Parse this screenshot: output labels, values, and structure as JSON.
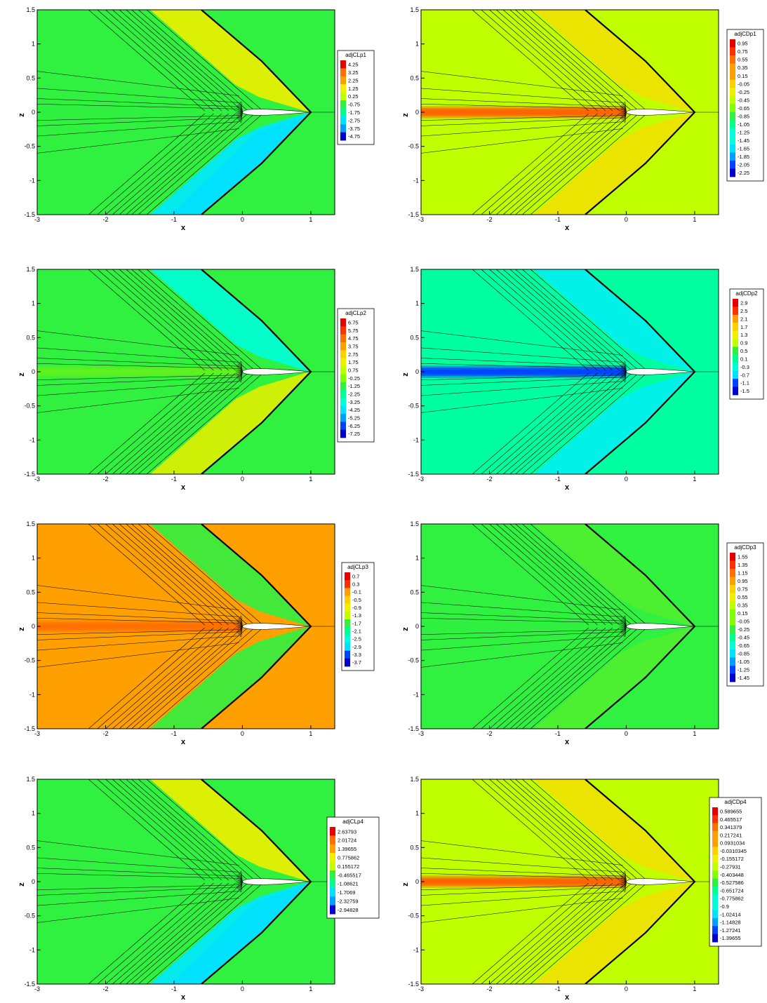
{
  "figure": {
    "panel_count": 8,
    "background": "#ffffff"
  },
  "colormap": [
    "#0000d0",
    "#0040ff",
    "#00a0ff",
    "#00e0ff",
    "#00ffd8",
    "#00ff90",
    "#30f040",
    "#80ff00",
    "#c0ff00",
    "#f0f000",
    "#ffd000",
    "#ffa000",
    "#ff7000",
    "#ff3000",
    "#e80000"
  ],
  "chart_data": [
    {
      "type": "contour",
      "title": "",
      "xlabel": "x",
      "ylabel": "z",
      "xlim": [
        -3,
        1.35
      ],
      "ylim": [
        -1.5,
        1.5
      ],
      "xticks": [
        "-3",
        "-2",
        "-1",
        "0",
        "1"
      ],
      "yticks": [
        "1.5",
        "1",
        "0.5",
        "0",
        "-0.5",
        "-1",
        "-1.5"
      ],
      "legend_title": "adjCLp1",
      "legend_levels": [
        "4.25",
        "3.25",
        "2.25",
        "1.25",
        "0.25",
        "-0.75",
        "-1.75",
        "-2.75",
        "-3.75",
        "-4.75"
      ],
      "legend_placement": "right",
      "background_color": "#30f040",
      "upper_band_color": "#f0f000",
      "lower_band_color": "#00e8ff",
      "wake_color": "#30f040",
      "lower_half_shade": true
    },
    {
      "type": "contour",
      "title": "",
      "xlabel": "x",
      "ylabel": "z",
      "xlim": [
        -3,
        1.35
      ],
      "ylim": [
        -1.5,
        1.5
      ],
      "xticks": [
        "-3",
        "-2",
        "-1",
        "0",
        "1"
      ],
      "yticks": [
        "1.5",
        "1",
        "0.5",
        "0",
        "-0.5",
        "-1",
        "-1.5"
      ],
      "legend_title": "adjCDp1",
      "legend_levels": [
        "0.95",
        "0.75",
        "0.55",
        "0.35",
        "0.15",
        "-0.05",
        "-0.25",
        "-0.45",
        "-0.65",
        "-0.85",
        "-1.05",
        "-1.25",
        "-1.45",
        "-1.65",
        "-1.85",
        "-2.05",
        "-2.25"
      ],
      "legend_placement": "right",
      "background_color": "#c0ff00",
      "upper_band_color": "#f0e000",
      "lower_band_color": "#f0e000",
      "wake_color": "#ff6000",
      "lower_half_shade": false
    },
    {
      "type": "contour",
      "title": "",
      "xlabel": "x",
      "ylabel": "z",
      "xlim": [
        -3,
        1.35
      ],
      "ylim": [
        -1.5,
        1.5
      ],
      "xticks": [
        "-3",
        "-2",
        "-1",
        "0",
        "1"
      ],
      "yticks": [
        "1.5",
        "1",
        "0.5",
        "0",
        "-0.5",
        "-1",
        "-1.5"
      ],
      "legend_title": "adjCLp2",
      "legend_levels": [
        "6.75",
        "5.75",
        "4.75",
        "3.75",
        "2.75",
        "1.75",
        "0.75",
        "-0.25",
        "-1.25",
        "-2.25",
        "-3.25",
        "-4.25",
        "-5.25",
        "-6.25",
        "-7.25"
      ],
      "legend_placement": "right",
      "background_color": "#30f040",
      "upper_band_color": "#00ffd8",
      "lower_band_color": "#e0f000",
      "wake_color": "#60f020",
      "lower_half_shade": false
    },
    {
      "type": "contour",
      "title": "",
      "xlabel": "x",
      "ylabel": "z",
      "xlim": [
        -3,
        1.35
      ],
      "ylim": [
        -1.5,
        1.5
      ],
      "xticks": [
        "-3",
        "-2",
        "-1",
        "0",
        "1"
      ],
      "yticks": [
        "1.5",
        "1",
        "0.5",
        "0",
        "-0.5",
        "-1",
        "-1.5"
      ],
      "legend_title": "adjCDp2",
      "legend_levels": [
        "2.9",
        "2.5",
        "2.1",
        "1.7",
        "1.3",
        "0.9",
        "0.5",
        "0.1",
        "-0.3",
        "-0.7",
        "-1.1",
        "-1.5"
      ],
      "legend_placement": "right",
      "background_color": "#00ffa0",
      "upper_band_color": "#00f0f0",
      "lower_band_color": "#00f0f0",
      "wake_color": "#0040ff",
      "lower_half_shade": false
    },
    {
      "type": "contour",
      "title": "",
      "xlabel": "x",
      "ylabel": "z",
      "xlim": [
        -3,
        1.35
      ],
      "ylim": [
        -1.5,
        1.5
      ],
      "xticks": [
        "-3",
        "-2",
        "-1",
        "0",
        "1"
      ],
      "yticks": [
        "1.5",
        "1",
        "0.5",
        "0",
        "-0.5",
        "-1",
        "-1.5"
      ],
      "legend_title": "adjCLp3",
      "legend_levels": [
        "0.7",
        "0.3",
        "-0.1",
        "-0.5",
        "-0.9",
        "-1.3",
        "-1.7",
        "-2.1",
        "-2.5",
        "-2.9",
        "-3.3",
        "-3.7"
      ],
      "legend_placement": "right",
      "background_color": "#ffa000",
      "upper_band_color": "#30f040",
      "lower_band_color": "#30f040",
      "wake_color": "#ff7000",
      "lower_half_shade": false
    },
    {
      "type": "contour",
      "title": "",
      "xlabel": "x",
      "ylabel": "z",
      "xlim": [
        -3,
        1.35
      ],
      "ylim": [
        -1.5,
        1.5
      ],
      "xticks": [
        "-3",
        "-2",
        "-1",
        "0",
        "1"
      ],
      "yticks": [
        "1.5",
        "1",
        "0.5",
        "0",
        "-0.5",
        "-1",
        "-1.5"
      ],
      "legend_title": "adjCDp3",
      "legend_levels": [
        "1.55",
        "1.35",
        "1.15",
        "0.95",
        "0.75",
        "0.55",
        "0.35",
        "0.15",
        "-0.05",
        "-0.25",
        "-0.45",
        "-0.65",
        "-0.85",
        "-1.05",
        "-1.25",
        "-1.45"
      ],
      "legend_placement": "right",
      "background_color": "#30f040",
      "upper_band_color": "#50f030",
      "lower_band_color": "#50f030",
      "wake_color": "#30f040",
      "lower_half_shade": false
    },
    {
      "type": "contour",
      "title": "",
      "xlabel": "x",
      "ylabel": "z",
      "xlim": [
        -3,
        1.35
      ],
      "ylim": [
        -1.5,
        1.5
      ],
      "xticks": [
        "-3",
        "-2",
        "-1",
        "0",
        "1"
      ],
      "yticks": [
        "1.5",
        "1",
        "0.5",
        "0",
        "-0.5",
        "-1",
        "-1.5"
      ],
      "legend_title": "adjCLp4",
      "legend_levels": [
        "2.63793",
        "2.01724",
        "1.39655",
        "0.775862",
        "0.155172",
        "-0.465517",
        "-1.08621",
        "-1.7069",
        "-2.32759",
        "-2.94828"
      ],
      "legend_placement": "right",
      "background_color": "#30f040",
      "upper_band_color": "#f0f000",
      "lower_band_color": "#00e8ff",
      "wake_color": "#30f040",
      "lower_half_shade": true
    },
    {
      "type": "contour",
      "title": "",
      "xlabel": "x",
      "ylabel": "z",
      "xlim": [
        -3,
        1.35
      ],
      "ylim": [
        -1.5,
        1.5
      ],
      "xticks": [
        "-3",
        "-2",
        "-1",
        "0",
        "1"
      ],
      "yticks": [
        "1.5",
        "1",
        "0.5",
        "0",
        "-0.5",
        "-1",
        "-1.5"
      ],
      "legend_title": "adjCDp4",
      "legend_levels": [
        "0.589655",
        "0.465517",
        "0.341379",
        "0.217241",
        "0.0931034",
        "-0.0310345",
        "-0.155172",
        "-0.27931",
        "-0.403448",
        "-0.527586",
        "-0.651724",
        "-0.775862",
        "-0.9",
        "-1.02414",
        "-1.14828",
        "-1.27241",
        "-1.39655"
      ],
      "legend_placement": "right",
      "background_color": "#c0ff00",
      "upper_band_color": "#f0e000",
      "lower_band_color": "#f0e000",
      "wake_color": "#ff6000",
      "lower_half_shade": false
    }
  ]
}
